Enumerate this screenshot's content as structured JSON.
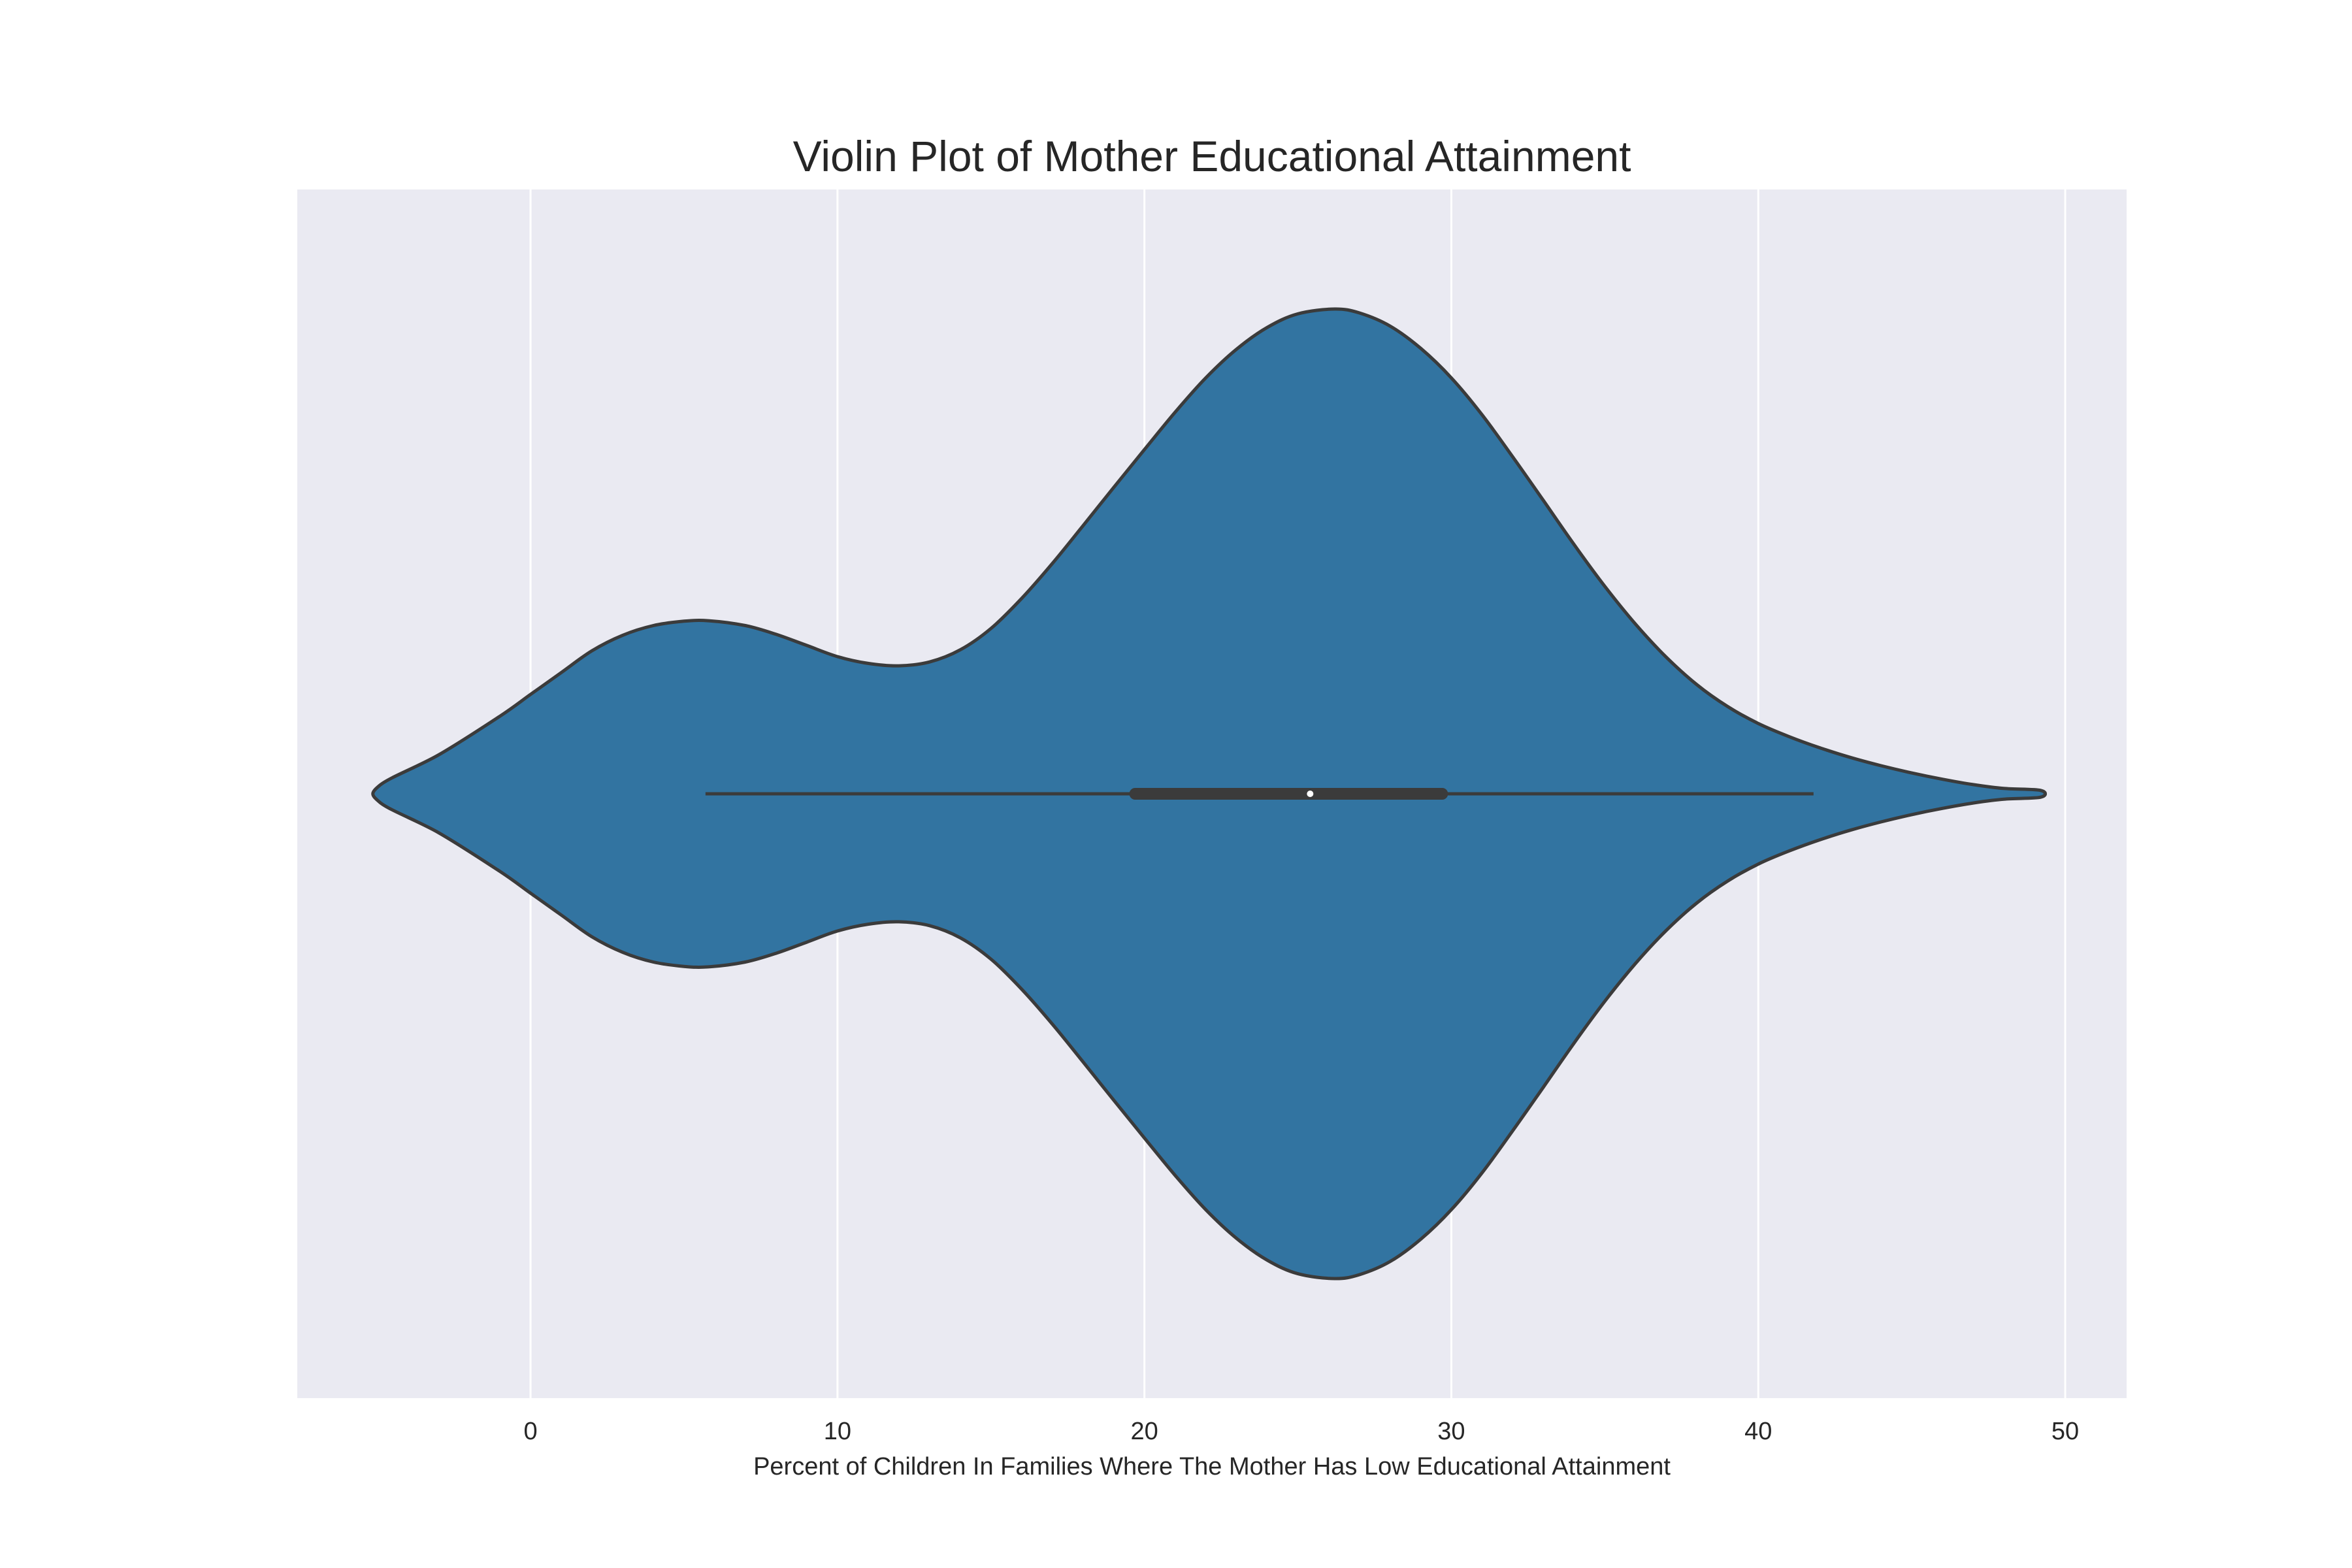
{
  "chart_data": {
    "type": "violin",
    "title": "Violin Plot of Mother Educational Attainment",
    "xlabel": "Percent of Children In Families Where The Mother Has Low Educational Attainment",
    "ylabel": "",
    "xlim": [
      -7.6,
      52.0
    ],
    "xticks": [
      0,
      10,
      20,
      30,
      40,
      50
    ],
    "grid": true,
    "legend": "none",
    "colors": {
      "background": "#eaeaf2",
      "violin_fill": "#3274a1",
      "outline": "#3b3b3b",
      "grid": "#ffffff",
      "median_dot": "#ffffff"
    },
    "series": [
      {
        "density": {
          "x": [
            -4.9,
            -3.0,
            -1.0,
            0.0,
            1.0,
            2.0,
            3.0,
            4.0,
            5.0,
            5.8,
            7.0,
            8.0,
            9.0,
            10.0,
            11.0,
            12.0,
            13.0,
            14.0,
            15.0,
            16.0,
            17.0,
            18.0,
            19.0,
            20.0,
            21.0,
            22.0,
            23.0,
            24.0,
            25.0,
            26.2,
            27.0,
            28.0,
            29.0,
            30.0,
            31.0,
            32.0,
            33.0,
            34.0,
            35.0,
            36.0,
            37.0,
            38.0,
            39.0,
            40.0,
            41.0,
            42.0,
            43.0,
            44.0,
            45.0,
            46.0,
            47.0,
            48.0,
            49.2
          ],
          "width": [
            0.018,
            0.08,
            0.16,
            0.205,
            0.25,
            0.295,
            0.327,
            0.347,
            0.356,
            0.357,
            0.347,
            0.329,
            0.306,
            0.283,
            0.269,
            0.264,
            0.272,
            0.297,
            0.341,
            0.403,
            0.475,
            0.553,
            0.632,
            0.71,
            0.787,
            0.858,
            0.917,
            0.962,
            0.99,
            1.0,
            0.992,
            0.965,
            0.919,
            0.858,
            0.782,
            0.695,
            0.605,
            0.514,
            0.428,
            0.35,
            0.282,
            0.225,
            0.18,
            0.145,
            0.118,
            0.095,
            0.075,
            0.058,
            0.043,
            0.03,
            0.019,
            0.011,
            0.007
          ]
        },
        "whisker_low": 5.7,
        "q1": 19.7,
        "median": 25.4,
        "q3": 29.7,
        "whisker_high": 41.8
      }
    ]
  }
}
